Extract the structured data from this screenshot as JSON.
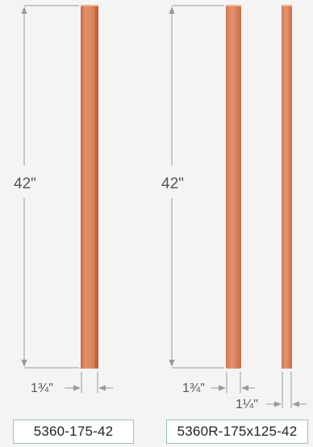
{
  "products": [
    {
      "height_label": "42\"",
      "width_label": "1¾\"",
      "part_number": "5360-175-42"
    },
    {
      "height_label": "42\"",
      "width_label": "1¾\"",
      "depth_label": "1¼\"",
      "part_number": "5360R-175x125-42"
    }
  ],
  "colors": {
    "wood_light": "#e3906c",
    "wood_mid": "#d87d58",
    "wood_dark": "#c0623f",
    "dimension_line": "#9a9a9a",
    "label_border": "#8fc7b6"
  }
}
